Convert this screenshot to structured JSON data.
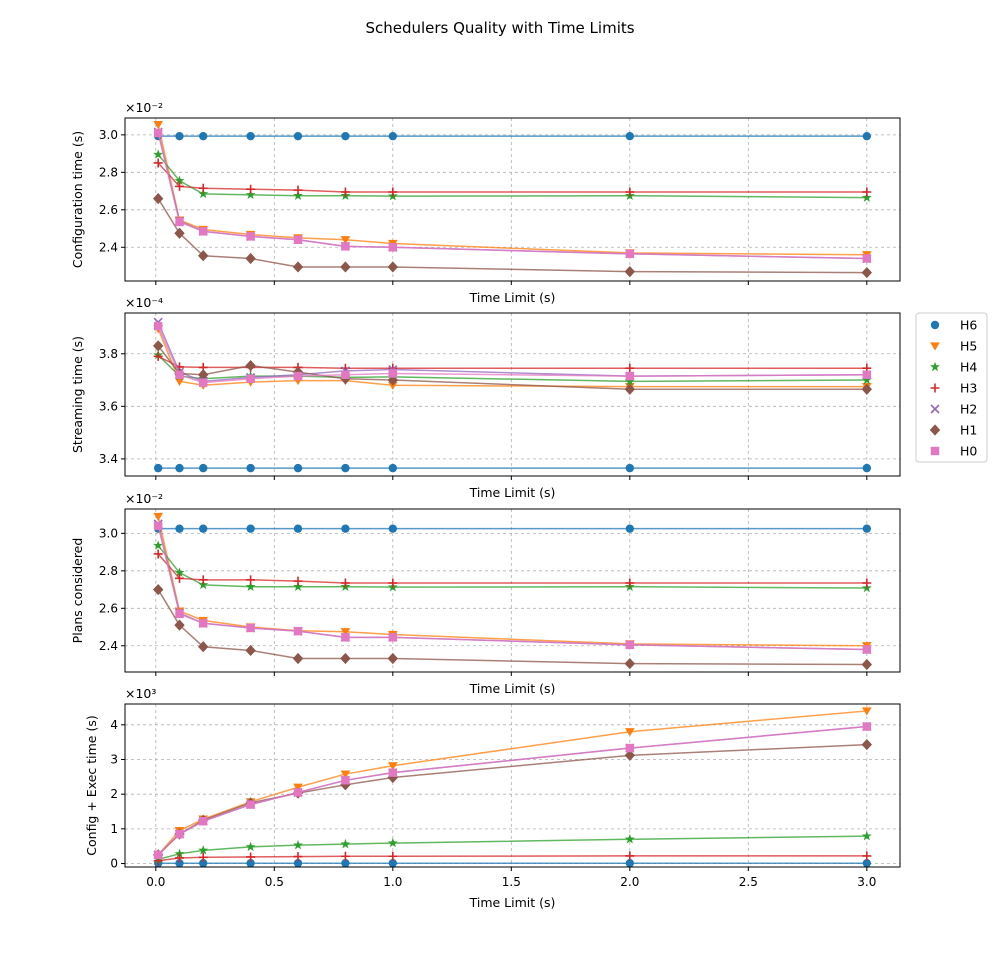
{
  "suptitle": "Schedulers Quality with Time Limits",
  "legend": {
    "placement": "right of panel 2",
    "entries": [
      {
        "name": "H6",
        "color": "#1f77b4",
        "marker": "circle"
      },
      {
        "name": "H5",
        "color": "#ff7f0e",
        "marker": "triangle-down"
      },
      {
        "name": "H4",
        "color": "#2ca02c",
        "marker": "star"
      },
      {
        "name": "H3",
        "color": "#d62728",
        "marker": "plus"
      },
      {
        "name": "H2",
        "color": "#9467bd",
        "marker": "x"
      },
      {
        "name": "H1",
        "color": "#8c564b",
        "marker": "diamond"
      },
      {
        "name": "H0",
        "color": "#e377c2",
        "marker": "square"
      }
    ]
  },
  "chart_data": [
    {
      "type": "line",
      "ylabel": "Configuration time (s)",
      "xlabel": "Time Limit (s)",
      "offset_label": "×10⁻²",
      "scale": 0.01,
      "ylim": [
        2.22,
        3.09
      ],
      "yticks": [
        "2.4",
        "2.6",
        "2.8",
        "3.0"
      ],
      "ytick_values": [
        2.4,
        2.6,
        2.8,
        3.0
      ],
      "grid": true,
      "x": [
        0.01,
        0.1,
        0.2,
        0.4,
        0.6,
        0.8,
        1.0,
        2.0,
        3.0
      ],
      "series": [
        {
          "name": "H6",
          "values": [
            2.993,
            2.993,
            2.993,
            2.993,
            2.993,
            2.993,
            2.993,
            2.993,
            2.993
          ]
        },
        {
          "name": "H5",
          "values": [
            3.055,
            2.545,
            2.495,
            2.468,
            2.45,
            2.44,
            2.42,
            2.37,
            2.36
          ]
        },
        {
          "name": "H4",
          "values": [
            2.895,
            2.755,
            2.685,
            2.68,
            2.675,
            2.675,
            2.673,
            2.675,
            2.665
          ]
        },
        {
          "name": "H3",
          "values": [
            2.85,
            2.725,
            2.715,
            2.71,
            2.705,
            2.695,
            2.695,
            2.695,
            2.695
          ]
        },
        {
          "name": "H2",
          "values": [
            3.015,
            2.54,
            2.485,
            2.458,
            2.44,
            2.405,
            2.4,
            2.365,
            2.34
          ]
        },
        {
          "name": "H1",
          "values": [
            2.66,
            2.475,
            2.355,
            2.34,
            2.295,
            2.295,
            2.295,
            2.27,
            2.265
          ]
        },
        {
          "name": "H0",
          "values": [
            3.01,
            2.535,
            2.485,
            2.458,
            2.44,
            2.405,
            2.4,
            2.365,
            2.34
          ]
        }
      ]
    },
    {
      "type": "line",
      "ylabel": "Streaming time (s)",
      "xlabel": "Time Limit (s)",
      "offset_label": "×10⁻⁴",
      "scale": 0.0001,
      "ylim": [
        3.335,
        3.955
      ],
      "yticks": [
        "3.4",
        "3.6",
        "3.8"
      ],
      "ytick_values": [
        3.4,
        3.6,
        3.8
      ],
      "grid": true,
      "x": [
        0.01,
        0.1,
        0.2,
        0.4,
        0.6,
        0.8,
        1.0,
        2.0,
        3.0
      ],
      "series": [
        {
          "name": "H6",
          "values": [
            3.365,
            3.365,
            3.365,
            3.365,
            3.365,
            3.365,
            3.365,
            3.365,
            3.365
          ]
        },
        {
          "name": "H5",
          "values": [
            3.895,
            3.695,
            3.68,
            3.692,
            3.698,
            3.698,
            3.68,
            3.675,
            3.675
          ]
        },
        {
          "name": "H4",
          "values": [
            3.795,
            3.715,
            3.705,
            3.715,
            3.715,
            3.71,
            3.712,
            3.695,
            3.7
          ]
        },
        {
          "name": "H3",
          "values": [
            3.79,
            3.75,
            3.748,
            3.748,
            3.748,
            3.745,
            3.745,
            3.745,
            3.745
          ]
        },
        {
          "name": "H2",
          "values": [
            3.92,
            3.73,
            3.695,
            3.71,
            3.72,
            3.735,
            3.74,
            3.715,
            3.72
          ]
        },
        {
          "name": "H1",
          "values": [
            3.83,
            3.725,
            3.72,
            3.755,
            3.73,
            3.705,
            3.7,
            3.665,
            3.665
          ]
        },
        {
          "name": "H0",
          "values": [
            3.905,
            3.72,
            3.69,
            3.705,
            3.715,
            3.72,
            3.725,
            3.715,
            3.72
          ]
        }
      ]
    },
    {
      "type": "line",
      "ylabel": "Plans considered",
      "xlabel": "Time Limit (s)",
      "offset_label": "×10⁻²",
      "scale": 0.01,
      "ylim": [
        2.26,
        3.13
      ],
      "yticks": [
        "2.4",
        "2.6",
        "2.8",
        "3.0"
      ],
      "ytick_values": [
        2.4,
        2.6,
        2.8,
        3.0
      ],
      "grid": true,
      "x": [
        0.01,
        0.1,
        0.2,
        0.4,
        0.6,
        0.8,
        1.0,
        2.0,
        3.0
      ],
      "series": [
        {
          "name": "H6",
          "values": [
            3.025,
            3.025,
            3.025,
            3.025,
            3.025,
            3.025,
            3.025,
            3.025,
            3.025
          ]
        },
        {
          "name": "H5",
          "values": [
            3.09,
            2.585,
            2.535,
            2.5,
            2.48,
            2.475,
            2.46,
            2.41,
            2.4
          ]
        },
        {
          "name": "H4",
          "values": [
            2.935,
            2.79,
            2.725,
            2.715,
            2.715,
            2.715,
            2.713,
            2.715,
            2.708
          ]
        },
        {
          "name": "H3",
          "values": [
            2.89,
            2.76,
            2.752,
            2.752,
            2.745,
            2.735,
            2.735,
            2.735,
            2.735
          ]
        },
        {
          "name": "H2",
          "values": [
            3.05,
            2.575,
            2.52,
            2.495,
            2.478,
            2.445,
            2.445,
            2.405,
            2.38
          ]
        },
        {
          "name": "H1",
          "values": [
            2.7,
            2.51,
            2.395,
            2.375,
            2.332,
            2.332,
            2.332,
            2.305,
            2.3
          ]
        },
        {
          "name": "H0",
          "values": [
            3.04,
            2.57,
            2.52,
            2.495,
            2.478,
            2.445,
            2.445,
            2.405,
            2.38
          ]
        }
      ]
    },
    {
      "type": "line",
      "ylabel": "Config + Exec time (s)",
      "xlabel": "Time Limit (s)",
      "offset_label": "×10³",
      "scale": 1000,
      "ylim": [
        -0.1,
        4.6
      ],
      "yticks": [
        "0",
        "1",
        "2",
        "3",
        "4"
      ],
      "ytick_values": [
        0,
        1,
        2,
        3,
        4
      ],
      "xlim": [
        -0.13,
        3.14
      ],
      "xticks": [
        "0.0",
        "0.5",
        "1.0",
        "1.5",
        "2.0",
        "2.5",
        "3.0"
      ],
      "xtick_values": [
        0,
        0.5,
        1.0,
        1.5,
        2.0,
        2.5,
        3.0
      ],
      "grid": true,
      "x": [
        0.01,
        0.1,
        0.2,
        0.4,
        0.6,
        0.8,
        1.0,
        2.0,
        3.0
      ],
      "series": [
        {
          "name": "H6",
          "values": [
            0.01,
            0.01,
            0.01,
            0.01,
            0.01,
            0.01,
            0.01,
            0.01,
            0.01
          ]
        },
        {
          "name": "H5",
          "values": [
            0.25,
            0.95,
            1.28,
            1.78,
            2.2,
            2.58,
            2.82,
            3.8,
            4.4
          ]
        },
        {
          "name": "H4",
          "values": [
            0.12,
            0.28,
            0.38,
            0.48,
            0.53,
            0.56,
            0.59,
            0.7,
            0.79
          ]
        },
        {
          "name": "H3",
          "values": [
            0.08,
            0.16,
            0.18,
            0.19,
            0.2,
            0.21,
            0.21,
            0.22,
            0.22
          ]
        },
        {
          "name": "H2",
          "values": [
            0.25,
            0.85,
            1.22,
            1.7,
            2.05,
            2.4,
            2.62,
            3.33,
            3.95
          ]
        },
        {
          "name": "H1",
          "values": [
            0.25,
            0.85,
            1.25,
            1.75,
            2.03,
            2.27,
            2.48,
            3.12,
            3.43
          ]
        },
        {
          "name": "H0",
          "values": [
            0.25,
            0.85,
            1.22,
            1.7,
            2.05,
            2.4,
            2.62,
            3.33,
            3.95
          ]
        }
      ]
    }
  ]
}
